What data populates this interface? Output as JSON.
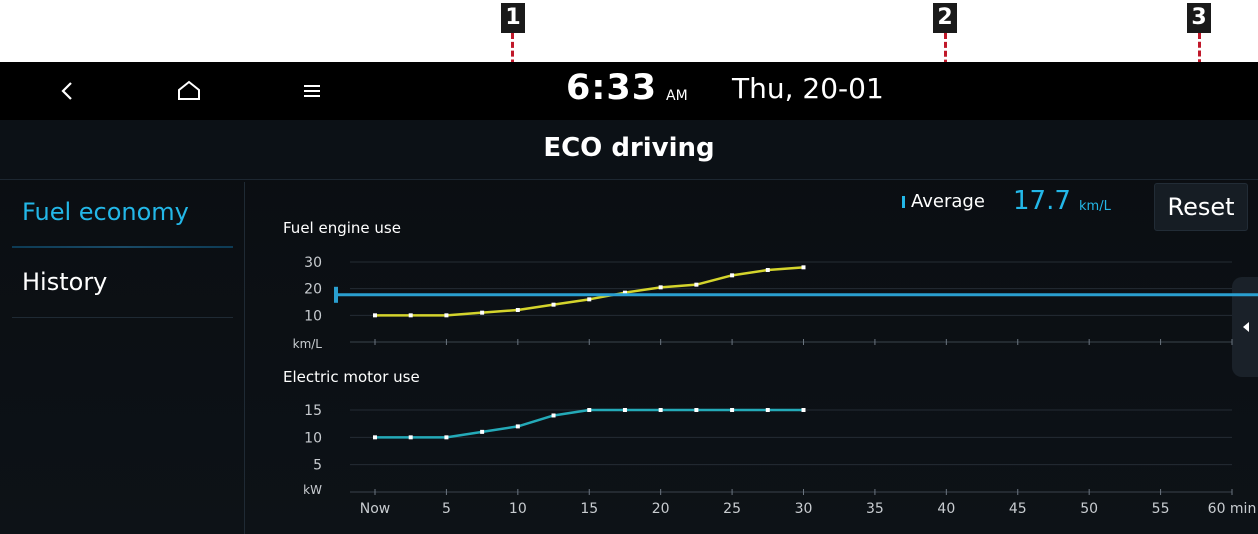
{
  "callouts": [
    "1",
    "2",
    "3"
  ],
  "status": {
    "time": "6:33",
    "ampm": "AM",
    "date": "Thu, 20-01"
  },
  "icons": {
    "back": "back-chevron-icon",
    "home": "home-icon",
    "menu": "menu-icon",
    "handle": "collapse-arrow-icon"
  },
  "header": {
    "title": "ECO driving"
  },
  "sidebar": {
    "items": [
      {
        "label": "Fuel economy",
        "selected": true
      },
      {
        "label": "History",
        "selected": false
      }
    ]
  },
  "average": {
    "label": "Average",
    "value": "17.7",
    "unit": "km/L"
  },
  "reset_label": "Reset",
  "colors": {
    "accent": "#23b7e8",
    "fuel_series": "#d4d42c",
    "electric_series": "#24aab8",
    "average_line": "#2a9fd0"
  },
  "chart_data": [
    {
      "type": "line",
      "title": "Fuel engine use",
      "ylabel": "km/L",
      "x": [
        "Now",
        2.5,
        5,
        7.5,
        10,
        12.5,
        15,
        17.5,
        20,
        22.5,
        25,
        27.5,
        30
      ],
      "series": [
        {
          "values": [
            10,
            10,
            10,
            11,
            12,
            14,
            16,
            18.5,
            20.5,
            21.5,
            25,
            27,
            28
          ]
        }
      ],
      "average": 17.7,
      "yticks": [
        10,
        20,
        30
      ],
      "ylim": [
        0,
        30
      ]
    },
    {
      "type": "line",
      "title": "Electric motor use",
      "ylabel": "kW",
      "x": [
        "Now",
        2.5,
        5,
        7.5,
        10,
        12.5,
        15,
        17.5,
        20,
        22.5,
        25,
        27.5,
        30
      ],
      "series": [
        {
          "values": [
            10,
            10,
            10,
            11,
            12,
            14,
            15,
            15,
            15,
            15,
            15,
            15,
            15
          ]
        }
      ],
      "yticks": [
        5,
        10,
        15
      ],
      "ylim": [
        0,
        15
      ],
      "xticks": [
        "Now",
        "5",
        "10",
        "15",
        "20",
        "25",
        "30",
        "35",
        "40",
        "45",
        "50",
        "55",
        "60 min"
      ],
      "xlim": [
        0,
        60
      ]
    }
  ]
}
